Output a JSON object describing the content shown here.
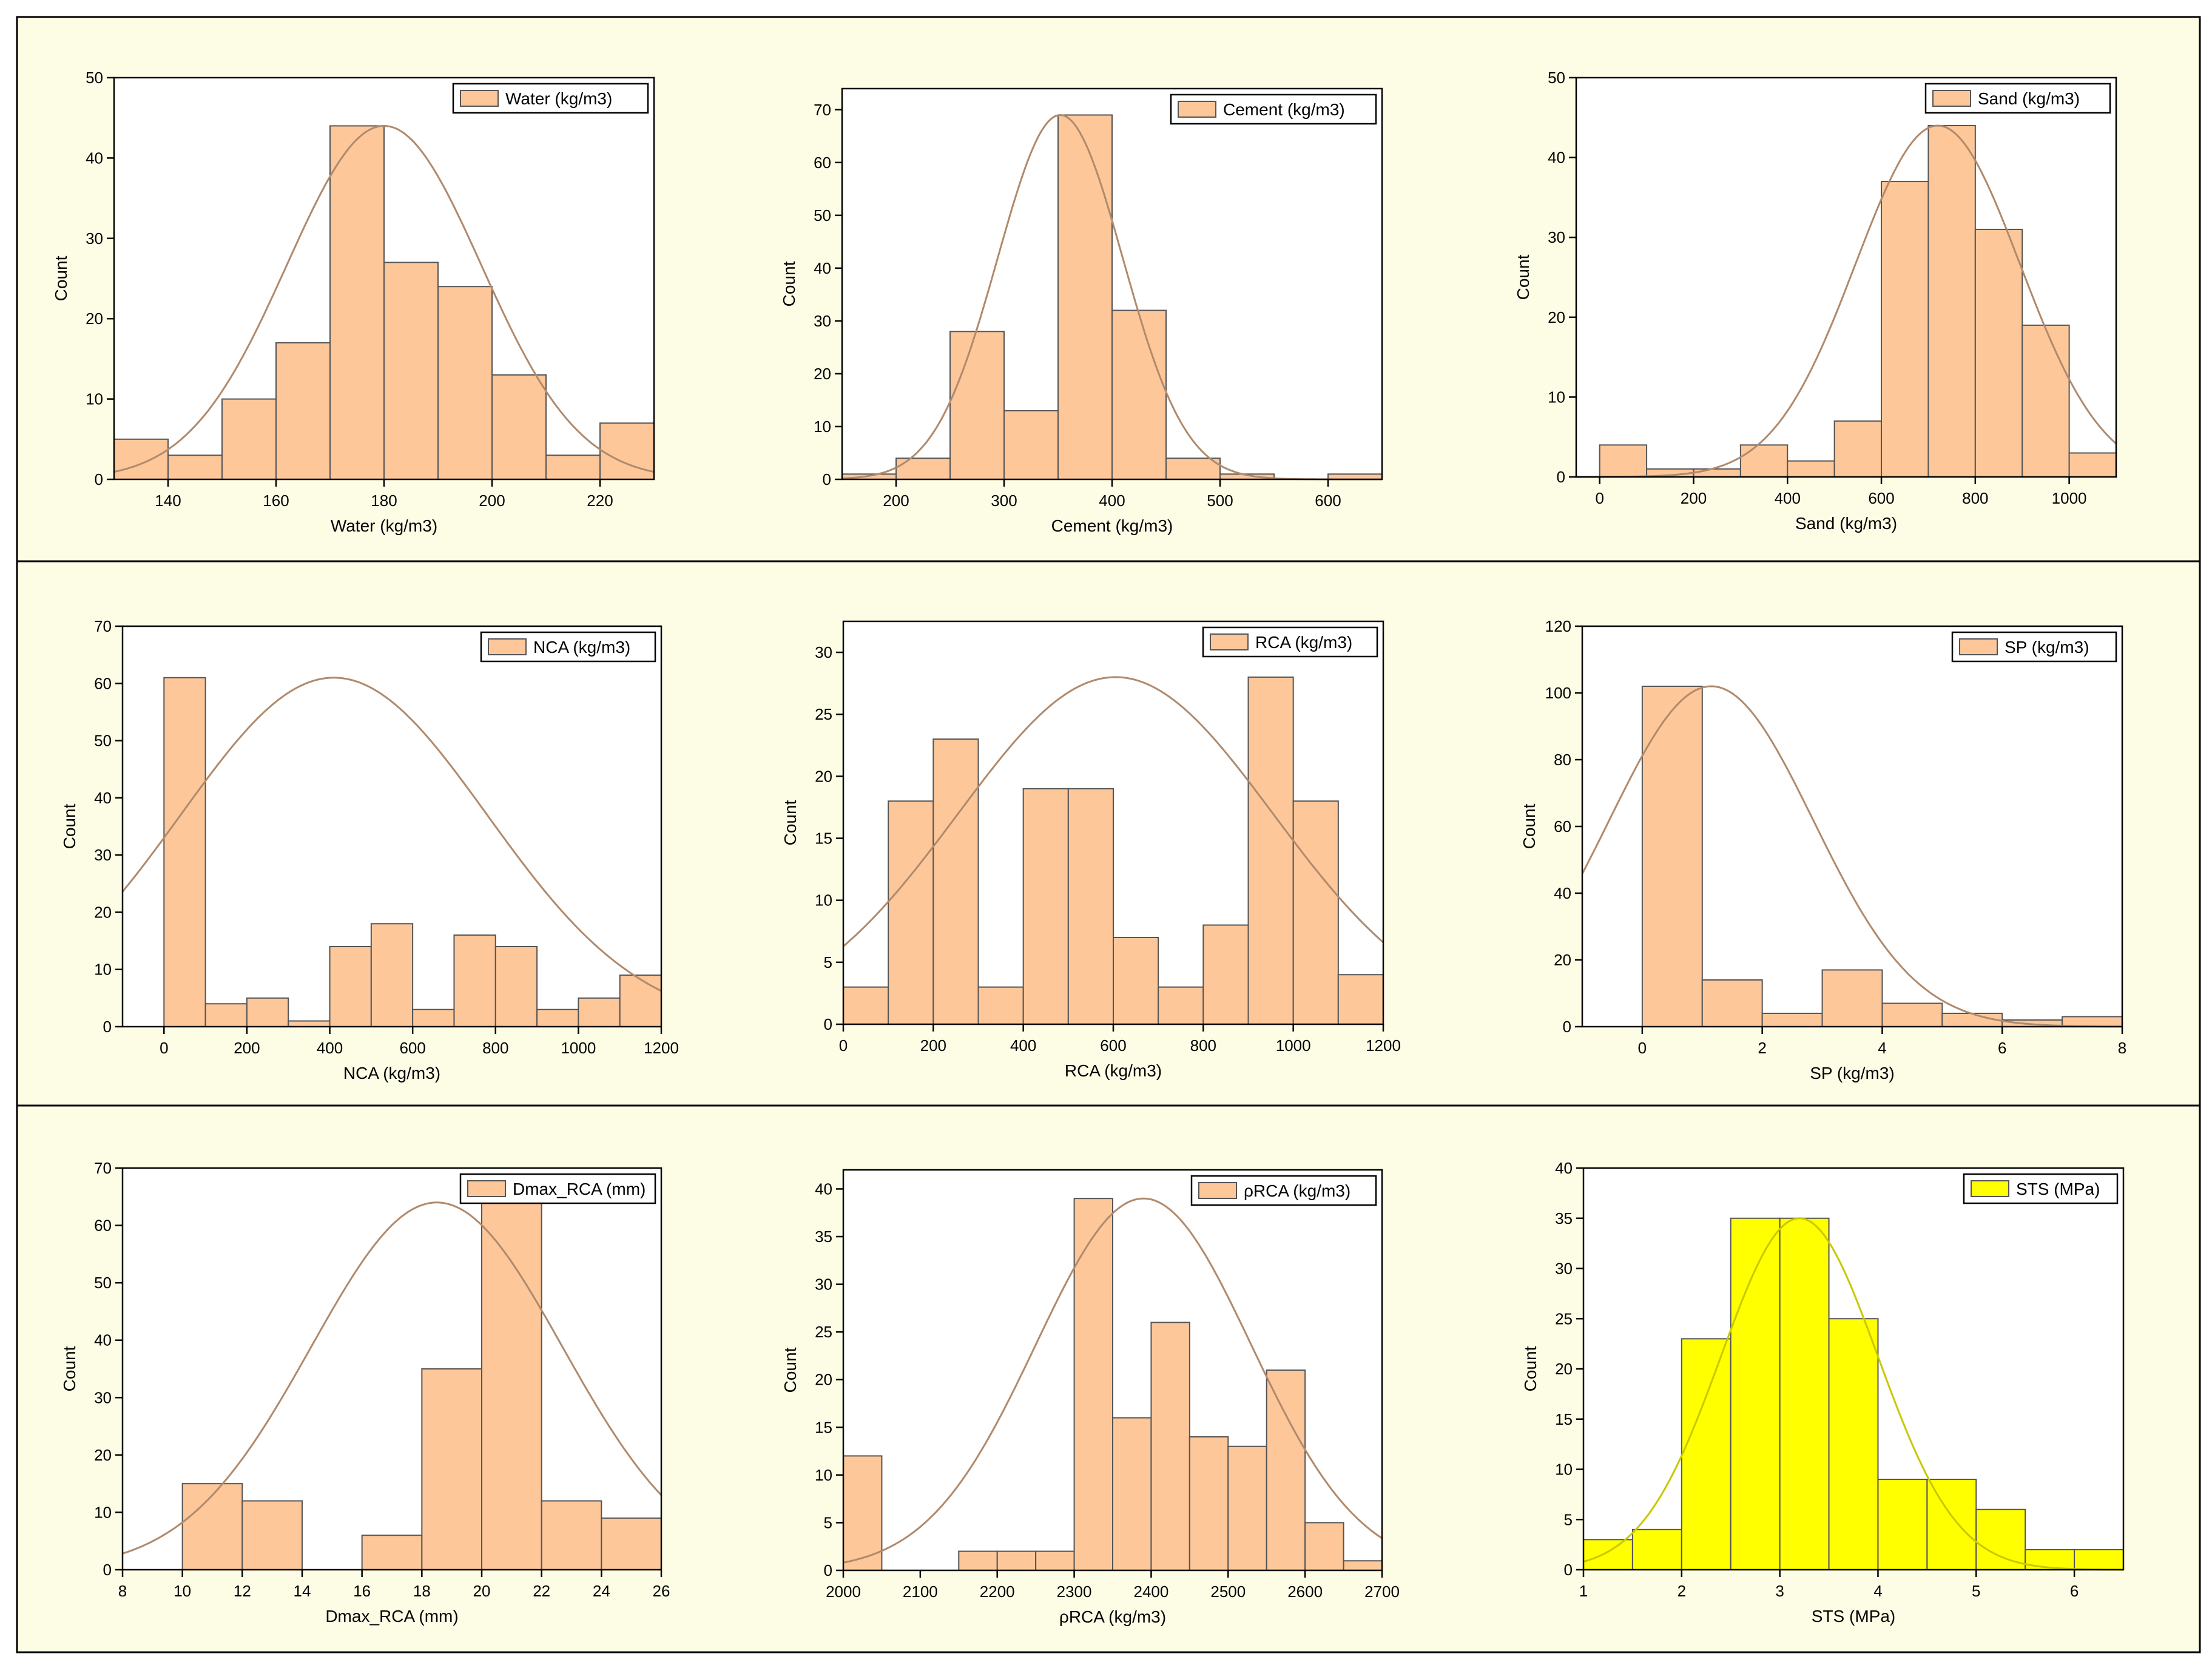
{
  "figure": {
    "background": "#fdfde6",
    "bar_color": "#fdc79a",
    "curve_color": "#b08a6c",
    "sts_bar_color": "#ffff00",
    "sts_curve_color": "#c8c800"
  },
  "chart_data": [
    {
      "type": "bar",
      "title": "Water (kg/m3)",
      "legend": "Water (kg/m3)",
      "legend_position": "top-right",
      "xlabel": "Water (kg/m3)",
      "ylabel": "Count",
      "xlim": [
        130,
        230
      ],
      "ylim": [
        0,
        50
      ],
      "xticks": [
        140,
        160,
        180,
        200,
        220
      ],
      "xtick_labels": [
        "140",
        "160",
        "180",
        "200",
        "220"
      ],
      "yticks": [
        0,
        10,
        20,
        30,
        40,
        50
      ],
      "ytick_labels": [
        "0",
        "10",
        "20",
        "30",
        "40",
        "50"
      ],
      "bin_edges": [
        130,
        140,
        150,
        160,
        170,
        180,
        190,
        200,
        210,
        220,
        230
      ],
      "values": [
        5,
        3,
        10,
        17,
        44,
        27,
        24,
        13,
        3,
        7
      ],
      "normal_fit": {
        "mean": 180,
        "peak": 44,
        "sd": 18
      }
    },
    {
      "type": "bar",
      "title": "Cement (kg/m3)",
      "legend": "Cement (kg/m3)",
      "legend_position": "top-right",
      "xlabel": "Cement (kg/m3)",
      "ylabel": "Count",
      "xlim": [
        150,
        650
      ],
      "ylim": [
        0,
        74
      ],
      "xticks": [
        200,
        300,
        400,
        500,
        600
      ],
      "xtick_labels": [
        "200",
        "300",
        "400",
        "500",
        "600"
      ],
      "yticks": [
        0,
        10,
        20,
        30,
        40,
        50,
        60,
        70
      ],
      "ytick_labels": [
        "0",
        "10",
        "20",
        "30",
        "40",
        "50",
        "60",
        "70"
      ],
      "bin_edges": [
        150,
        200,
        250,
        300,
        350,
        400,
        450,
        500,
        550,
        600,
        650
      ],
      "values": [
        1,
        4,
        28,
        13,
        69,
        32,
        4,
        1,
        0,
        1
      ],
      "normal_fit": {
        "mean": 352,
        "peak": 69,
        "sd": 58
      }
    },
    {
      "type": "bar",
      "title": "Sand (kg/m3)",
      "legend": "Sand (kg/m3)",
      "legend_position": "top-right",
      "xlabel": "Sand (kg/m3)",
      "ylabel": "Count",
      "xlim": [
        -50,
        1100
      ],
      "ylim": [
        0,
        50
      ],
      "xticks": [
        0,
        200,
        400,
        600,
        800,
        1000
      ],
      "xtick_labels": [
        "0",
        "200",
        "400",
        "600",
        "800",
        "1000"
      ],
      "yticks": [
        0,
        10,
        20,
        30,
        40,
        50
      ],
      "ytick_labels": [
        "0",
        "10",
        "20",
        "30",
        "40",
        "50"
      ],
      "bin_edges": [
        0,
        100,
        200,
        300,
        400,
        500,
        600,
        700,
        800,
        900,
        1000,
        1100
      ],
      "values": [
        4,
        1,
        1,
        4,
        2,
        7,
        37,
        44,
        31,
        19,
        3
      ],
      "normal_fit": {
        "mean": 720,
        "peak": 44,
        "sd": 175
      }
    },
    {
      "type": "bar",
      "title": "NCA (kg/m3)",
      "legend": "NCA (kg/m3)",
      "legend_position": "top-right",
      "xlabel": "NCA (kg/m3)",
      "ylabel": "Count",
      "xlim": [
        -100,
        1200
      ],
      "ylim": [
        0,
        70
      ],
      "xticks": [
        0,
        200,
        400,
        600,
        800,
        1000,
        1200
      ],
      "xtick_labels": [
        "0",
        "200",
        "400",
        "600",
        "800",
        "1000",
        "1200"
      ],
      "yticks": [
        0,
        10,
        20,
        30,
        40,
        50,
        60,
        70
      ],
      "ytick_labels": [
        "0",
        "10",
        "20",
        "30",
        "40",
        "50",
        "60",
        "70"
      ],
      "bin_edges": [
        0,
        100,
        200,
        300,
        400,
        500,
        600,
        700,
        800,
        900,
        1000,
        1100,
        1200
      ],
      "values": [
        61,
        4,
        5,
        1,
        14,
        18,
        3,
        16,
        14,
        3,
        5,
        9
      ],
      "normal_fit": {
        "mean": 410,
        "peak": 61,
        "sd": 370
      }
    },
    {
      "type": "bar",
      "title": "RCA (kg/m3)",
      "legend": "RCA (kg/m3)",
      "legend_position": "top-right",
      "xlabel": "RCA (kg/m3)",
      "ylabel": "Count",
      "xlim": [
        0,
        1200
      ],
      "ylim": [
        0,
        32.5
      ],
      "xticks": [
        0,
        200,
        400,
        600,
        800,
        1000,
        1200
      ],
      "xtick_labels": [
        "0",
        "200",
        "400",
        "600",
        "800",
        "1000",
        "1200"
      ],
      "yticks": [
        0,
        5,
        10,
        15,
        20,
        25,
        30
      ],
      "ytick_labels": [
        "0",
        "5",
        "10",
        "15",
        "20",
        "25",
        "30"
      ],
      "bin_edges": [
        0,
        100,
        200,
        300,
        400,
        500,
        600,
        700,
        800,
        900,
        1000,
        1100,
        1200
      ],
      "values": [
        3,
        18,
        23,
        3,
        19,
        19,
        7,
        3,
        8,
        28,
        18,
        4
      ],
      "normal_fit": {
        "mean": 605,
        "peak": 28,
        "sd": 350
      }
    },
    {
      "type": "bar",
      "title": "SP (kg/m3)",
      "legend": "SP (kg/m3)",
      "legend_position": "top-right",
      "xlabel": "SP (kg/m3)",
      "ylabel": "Count",
      "xlim": [
        -1,
        8
      ],
      "ylim": [
        0,
        120
      ],
      "xticks": [
        0,
        2,
        4,
        6,
        8
      ],
      "xtick_labels": [
        "0",
        "2",
        "4",
        "6",
        "8"
      ],
      "yticks": [
        0,
        20,
        40,
        60,
        80,
        100,
        120
      ],
      "ytick_labels": [
        "0",
        "20",
        "40",
        "60",
        "80",
        "100",
        "120"
      ],
      "bin_edges": [
        0,
        1,
        2,
        3,
        4,
        5,
        6,
        7,
        8
      ],
      "values": [
        102,
        14,
        4,
        17,
        7,
        4,
        2,
        3
      ],
      "normal_fit": {
        "mean": 1.15,
        "peak": 102,
        "sd": 1.7
      }
    },
    {
      "type": "bar",
      "title": "Dmax_RCA (mm)",
      "legend": "Dmax_RCA (mm)",
      "legend_position": "top-right",
      "xlabel": "Dmax_RCA (mm)",
      "ylabel": "Count",
      "xlim": [
        8,
        26
      ],
      "ylim": [
        0,
        70
      ],
      "xticks": [
        8,
        10,
        12,
        14,
        16,
        18,
        20,
        22,
        24,
        26
      ],
      "xtick_labels": [
        "8",
        "10",
        "12",
        "14",
        "16",
        "18",
        "20",
        "22",
        "24",
        "26"
      ],
      "yticks": [
        0,
        10,
        20,
        30,
        40,
        50,
        60,
        70
      ],
      "ytick_labels": [
        "0",
        "10",
        "20",
        "30",
        "40",
        "50",
        "60",
        "70"
      ],
      "bin_edges": [
        10,
        12,
        14,
        16,
        18,
        20,
        22,
        24,
        26
      ],
      "values": [
        15,
        12,
        0,
        6,
        35,
        64,
        12,
        9
      ],
      "normal_fit": {
        "mean": 18.5,
        "peak": 64,
        "sd": 4.2
      }
    },
    {
      "type": "bar",
      "title": "ρRCA (kg/m3)",
      "legend": "ρRCA (kg/m3)",
      "legend_position": "top-right",
      "xlabel": "ρRCA (kg/m3)",
      "ylabel": "Count",
      "xlim": [
        2000,
        2700
      ],
      "ylim": [
        0,
        42
      ],
      "xticks": [
        2000,
        2100,
        2200,
        2300,
        2400,
        2500,
        2600,
        2700
      ],
      "xtick_labels": [
        "2000",
        "2100",
        "2200",
        "2300",
        "2400",
        "2500",
        "2600",
        "2700"
      ],
      "yticks": [
        0,
        5,
        10,
        15,
        20,
        25,
        30,
        35,
        40
      ],
      "ytick_labels": [
        "0",
        "5",
        "10",
        "15",
        "20",
        "25",
        "30",
        "35",
        "40"
      ],
      "bin_edges": [
        2000,
        2050,
        2100,
        2150,
        2200,
        2250,
        2300,
        2350,
        2400,
        2450,
        2500,
        2550,
        2600,
        2650,
        2700
      ],
      "values": [
        12,
        0,
        0,
        2,
        2,
        2,
        39,
        16,
        26,
        14,
        13,
        21,
        5,
        1
      ],
      "normal_fit": {
        "mean": 2390,
        "peak": 39,
        "sd": 140
      }
    },
    {
      "type": "bar",
      "title": "STS (MPa)",
      "legend": "STS (MPa)",
      "legend_position": "top-right",
      "xlabel": "STS (MPa)",
      "ylabel": "Count",
      "xlim": [
        1,
        6.5
      ],
      "ylim": [
        0,
        40
      ],
      "xticks": [
        1,
        2,
        3,
        4,
        5,
        6
      ],
      "xtick_labels": [
        "1",
        "2",
        "3",
        "4",
        "5",
        "6"
      ],
      "yticks": [
        0,
        5,
        10,
        15,
        20,
        25,
        30,
        35,
        40
      ],
      "ytick_labels": [
        "0",
        "5",
        "10",
        "15",
        "20",
        "25",
        "30",
        "35",
        "40"
      ],
      "bin_edges": [
        1,
        1.5,
        2,
        2.5,
        3,
        3.5,
        4,
        4.5,
        5,
        5.5,
        6,
        6.5
      ],
      "values": [
        3,
        4,
        23,
        35,
        35,
        25,
        9,
        9,
        6,
        2,
        2
      ],
      "normal_fit": {
        "mean": 3.2,
        "peak": 35,
        "sd": 0.8
      },
      "yellow": true
    }
  ]
}
